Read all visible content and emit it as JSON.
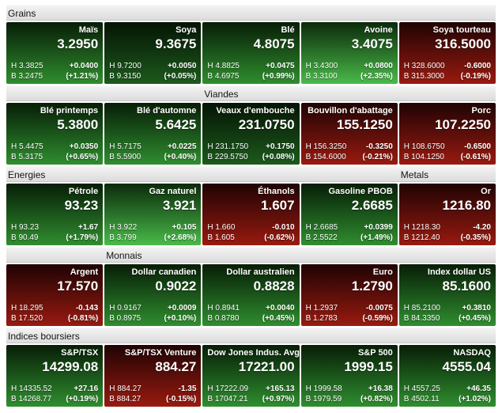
{
  "colors": {
    "up_low_top": "#051404",
    "up_low_bottom": "#1c5a1c",
    "up_med_top": "#071d06",
    "up_med_bottom": "#2f8e2f",
    "up_high_top": "#0b2a0a",
    "up_high_bottom": "#49bb49",
    "down_med_top": "#1f0303",
    "down_med_bottom": "#991a10",
    "header_bg_top": "#f3f3f3",
    "header_bg_bottom": "#dcdcdc",
    "header_text": "#151515",
    "tile_text": "#ffffff"
  },
  "board": {
    "rows": [
      {
        "header_labels": [
          {
            "text": "Grains",
            "col": 0
          }
        ],
        "tiles": [
          {
            "title": "Maïs",
            "value": "3.2950",
            "high": "H 3.3825",
            "change": "+0.0400",
            "low": "B 3.2475",
            "pct": "(+1.21%)",
            "trend": "up",
            "level": "med"
          },
          {
            "title": "Soya",
            "value": "9.3675",
            "high": "H 9.7200",
            "change": "+0.0050",
            "low": "B 9.3150",
            "pct": "(+0.05%)",
            "trend": "up",
            "level": "low"
          },
          {
            "title": "Blé",
            "value": "4.8075",
            "high": "H 4.8825",
            "change": "+0.0475",
            "low": "B 4.6975",
            "pct": "(+0.99%)",
            "trend": "up",
            "level": "med"
          },
          {
            "title": "Avoine",
            "value": "3.4075",
            "high": "H 3.4300",
            "change": "+0.0800",
            "low": "B 3.3100",
            "pct": "(+2.35%)",
            "trend": "up",
            "level": "high"
          },
          {
            "title": "Soya tourteau",
            "value": "316.5000",
            "high": "H 328.6000",
            "change": "-0.6000",
            "low": "B 315.3000",
            "pct": "(-0.19%)",
            "trend": "down",
            "level": "med"
          }
        ]
      },
      {
        "header_labels": [
          {
            "text": "Viandes",
            "col": 2
          }
        ],
        "tiles": [
          {
            "title": "Blé printemps",
            "value": "5.3800",
            "high": "H 5.4475",
            "change": "+0.0350",
            "low": "B 5.3175",
            "pct": "(+0.65%)",
            "trend": "up",
            "level": "med"
          },
          {
            "title": "Blé d'automne",
            "value": "5.6425",
            "high": "H 5.7175",
            "change": "+0.0225",
            "low": "B 5.5900",
            "pct": "(+0.40%)",
            "trend": "up",
            "level": "med"
          },
          {
            "title": "Veaux d'embouche",
            "value": "231.0750",
            "high": "H 231.1750",
            "change": "+0.1750",
            "low": "B 229.5750",
            "pct": "(+0.08%)",
            "trend": "up",
            "level": "low"
          },
          {
            "title": "Bouvillon d'abattage",
            "value": "155.1250",
            "high": "H 156.3250",
            "change": "-0.3250",
            "low": "B 154.6000",
            "pct": "(-0.21%)",
            "trend": "down",
            "level": "med"
          },
          {
            "title": "Porc",
            "value": "107.2250",
            "high": "H 108.6750",
            "change": "-0.6500",
            "low": "B 104.1250",
            "pct": "(-0.61%)",
            "trend": "down",
            "level": "med"
          }
        ]
      },
      {
        "header_labels": [
          {
            "text": "Energies",
            "col": 0
          },
          {
            "text": "Metals",
            "col": 4
          }
        ],
        "tiles": [
          {
            "title": "Pétrole",
            "value": "93.23",
            "high": "H 93.23",
            "change": "+1.67",
            "low": "B 90.49",
            "pct": "(+1.79%)",
            "trend": "up",
            "level": "med"
          },
          {
            "title": "Gaz naturel",
            "value": "3.921",
            "high": "H 3.922",
            "change": "+0.105",
            "low": "B 3.799",
            "pct": "(+2.68%)",
            "trend": "up",
            "level": "high"
          },
          {
            "title": "Éthanols",
            "value": "1.607",
            "high": "H 1.660",
            "change": "-0.010",
            "low": "B 1.605",
            "pct": "(-0.62%)",
            "trend": "down",
            "level": "med"
          },
          {
            "title": "Gasoline PBOB",
            "value": "2.6685",
            "high": "H 2.6685",
            "change": "+0.0399",
            "low": "B 2.5522",
            "pct": "(+1.49%)",
            "trend": "up",
            "level": "med"
          },
          {
            "title": "Or",
            "value": "1216.80",
            "high": "H 1218.30",
            "change": "-4.20",
            "low": "B 1212.40",
            "pct": "(-0.35%)",
            "trend": "down",
            "level": "med"
          }
        ]
      },
      {
        "header_labels": [
          {
            "text": "Monnais",
            "col": 1
          }
        ],
        "tiles": [
          {
            "title": "Argent",
            "value": "17.570",
            "high": "H 18.295",
            "change": "-0.143",
            "low": "B 17.520",
            "pct": "(-0.81%)",
            "trend": "down",
            "level": "med"
          },
          {
            "title": "Dollar canadien",
            "value": "0.9022",
            "high": "H 0.9167",
            "change": "+0.0009",
            "low": "B 0.8975",
            "pct": "(+0.10%)",
            "trend": "up",
            "level": "med"
          },
          {
            "title": "Dollar australien",
            "value": "0.8828",
            "high": "H 0.8941",
            "change": "+0.0040",
            "low": "B 0.8780",
            "pct": "(+0.45%)",
            "trend": "up",
            "level": "med"
          },
          {
            "title": "Euro",
            "value": "1.2790",
            "high": "H 1.2937",
            "change": "-0.0075",
            "low": "B 1.2783",
            "pct": "(-0.59%)",
            "trend": "down",
            "level": "med"
          },
          {
            "title": "Index dollar US",
            "value": "85.1600",
            "high": "H 85.2100",
            "change": "+0.3810",
            "low": "B 84.3350",
            "pct": "(+0.45%)",
            "trend": "up",
            "level": "med"
          }
        ]
      },
      {
        "header_labels": [
          {
            "text": "Indices boursiers",
            "col": 0
          }
        ],
        "tiles": [
          {
            "title": "S&P/TSX",
            "value": "14299.08",
            "high": "H 14335.52",
            "change": "+27.16",
            "low": "B 14268.77",
            "pct": "(+0.19%)",
            "trend": "up",
            "level": "med"
          },
          {
            "title": "S&P/TSX Venture",
            "value": "884.27",
            "high": "H 884.27",
            "change": "-1.35",
            "low": "B 884.27",
            "pct": "(-0.15%)",
            "trend": "down",
            "level": "med"
          },
          {
            "title": "Dow Jones Indus. Avg.",
            "value": "17221.00",
            "high": "H 17222.09",
            "change": "+165.13",
            "low": "B 17047.21",
            "pct": "(+0.97%)",
            "trend": "up",
            "level": "med"
          },
          {
            "title": "S&P 500",
            "value": "1999.15",
            "high": "H 1999.58",
            "change": "+16.38",
            "low": "B 1979.59",
            "pct": "(+0.82%)",
            "trend": "up",
            "level": "med"
          },
          {
            "title": "NASDAQ",
            "value": "4555.04",
            "high": "H 4557.25",
            "change": "+46.35",
            "low": "B 4502.11",
            "pct": "(+1.02%)",
            "trend": "up",
            "level": "med"
          }
        ]
      }
    ]
  }
}
